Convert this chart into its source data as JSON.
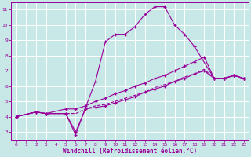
{
  "title": "",
  "xlabel": "Windchill (Refroidissement éolien,°C)",
  "ylabel": "",
  "bg_color": "#c8e8e8",
  "line_color": "#990099",
  "grid_color": "#aacccc",
  "xlim": [
    -0.5,
    23.5
  ],
  "ylim": [
    2.5,
    11.5
  ],
  "xticks": [
    0,
    1,
    2,
    3,
    4,
    5,
    6,
    7,
    8,
    9,
    10,
    11,
    12,
    13,
    14,
    15,
    16,
    17,
    18,
    19,
    20,
    21,
    22,
    23
  ],
  "yticks": [
    3,
    4,
    5,
    6,
    7,
    8,
    9,
    10,
    11
  ],
  "line1_x": [
    0,
    2,
    3,
    5,
    6,
    7,
    8,
    9,
    10,
    11,
    12,
    13,
    14,
    15,
    16,
    17,
    18,
    20,
    21,
    22,
    23
  ],
  "line1_y": [
    4.0,
    4.3,
    4.2,
    4.2,
    2.8,
    4.6,
    6.3,
    8.9,
    9.4,
    9.4,
    9.9,
    10.7,
    11.2,
    11.2,
    10.0,
    9.4,
    8.6,
    6.5,
    6.5,
    6.7,
    6.5
  ],
  "line2_x": [
    0,
    2,
    3,
    5,
    6,
    7,
    8,
    9,
    10,
    11,
    12,
    13,
    14,
    15,
    16,
    17,
    18,
    19,
    20,
    21,
    22,
    23
  ],
  "line2_y": [
    4.0,
    4.3,
    4.2,
    4.5,
    4.5,
    4.7,
    5.0,
    5.2,
    5.5,
    5.7,
    6.0,
    6.2,
    6.5,
    6.7,
    7.0,
    7.3,
    7.6,
    7.9,
    6.5,
    6.5,
    6.7,
    6.5
  ],
  "line3_x": [
    0,
    2,
    3,
    5,
    6,
    7,
    8,
    9,
    10,
    11,
    12,
    13,
    14,
    15,
    16,
    17,
    18,
    19,
    20,
    21,
    22,
    23
  ],
  "line3_y": [
    4.0,
    4.3,
    4.2,
    4.2,
    3.0,
    4.5,
    4.6,
    4.7,
    4.9,
    5.1,
    5.3,
    5.6,
    5.8,
    6.0,
    6.3,
    6.5,
    6.8,
    7.0,
    6.5,
    6.5,
    6.7,
    6.5
  ],
  "line4_x": [
    0,
    2,
    3,
    5,
    6,
    7,
    8,
    9,
    10,
    11,
    12,
    13,
    14,
    15,
    16,
    17,
    18,
    19,
    20,
    21,
    22,
    23
  ],
  "line4_y": [
    4.0,
    4.3,
    4.2,
    4.2,
    4.2,
    4.5,
    4.7,
    4.8,
    5.0,
    5.2,
    5.4,
    5.6,
    5.9,
    6.1,
    6.3,
    6.6,
    6.8,
    7.1,
    6.5,
    6.5,
    6.7,
    6.5
  ]
}
